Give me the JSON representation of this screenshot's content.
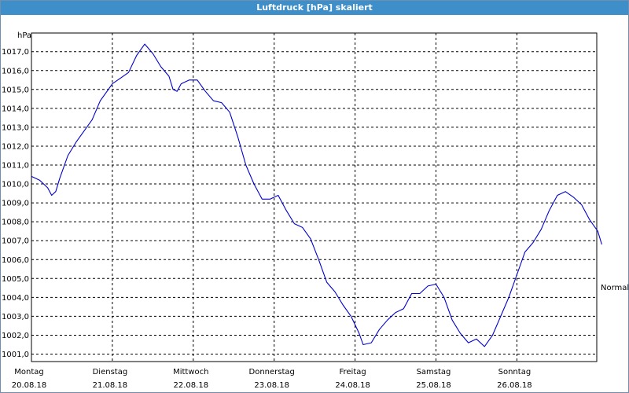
{
  "window": {
    "title": "Luftdruck [hPa] skaliert"
  },
  "chart_data": {
    "type": "line",
    "title": "Luftdruck [hPa] skaliert",
    "ylabel": "hPa",
    "ylim": [
      1000.5,
      1017.9
    ],
    "yticks": [
      "1001,0",
      "1002,0",
      "1003,0",
      "1004,0",
      "1005,0",
      "1006,0",
      "1007,0",
      "1008,0",
      "1009,0",
      "1010,0",
      "1011,0",
      "1012,0",
      "1013,0",
      "1014,0",
      "1015,0",
      "1016,0",
      "1017,0"
    ],
    "xlim": [
      0,
      7
    ],
    "xticks": [
      {
        "day": "Montag",
        "date": "20.08.18"
      },
      {
        "day": "Dienstag",
        "date": "21.08.18"
      },
      {
        "day": "Mittwoch",
        "date": "22.08.18"
      },
      {
        "day": "Donnerstag",
        "date": "23.08.18"
      },
      {
        "day": "Freitag",
        "date": "24.08.18"
      },
      {
        "day": "Samstag",
        "date": "25.08.18"
      },
      {
        "day": "Sonntag",
        "date": "26.08.18"
      }
    ],
    "grid": true,
    "line_color": "#0000cc",
    "annotation": "Normal",
    "series": [
      {
        "points": [
          [
            0.0,
            1010.4
          ],
          [
            0.1,
            1010.2
          ],
          [
            0.2,
            1009.8
          ],
          [
            0.25,
            1009.4
          ],
          [
            0.3,
            1009.6
          ],
          [
            0.35,
            1010.3
          ],
          [
            0.45,
            1011.5
          ],
          [
            0.55,
            1012.2
          ],
          [
            0.65,
            1012.8
          ],
          [
            0.75,
            1013.4
          ],
          [
            0.85,
            1014.4
          ],
          [
            0.95,
            1015.0
          ],
          [
            1.0,
            1015.3
          ],
          [
            1.1,
            1015.6
          ],
          [
            1.2,
            1015.9
          ],
          [
            1.3,
            1016.8
          ],
          [
            1.4,
            1017.4
          ],
          [
            1.5,
            1016.9
          ],
          [
            1.6,
            1016.2
          ],
          [
            1.7,
            1015.7
          ],
          [
            1.75,
            1015.0
          ],
          [
            1.8,
            1014.9
          ],
          [
            1.85,
            1015.3
          ],
          [
            1.95,
            1015.5
          ],
          [
            2.05,
            1015.5
          ],
          [
            2.15,
            1014.9
          ],
          [
            2.25,
            1014.4
          ],
          [
            2.35,
            1014.3
          ],
          [
            2.45,
            1013.8
          ],
          [
            2.55,
            1012.5
          ],
          [
            2.65,
            1011.0
          ],
          [
            2.75,
            1010.0
          ],
          [
            2.85,
            1009.2
          ],
          [
            2.95,
            1009.2
          ],
          [
            3.05,
            1009.4
          ],
          [
            3.15,
            1008.6
          ],
          [
            3.25,
            1007.9
          ],
          [
            3.35,
            1007.7
          ],
          [
            3.45,
            1007.1
          ],
          [
            3.55,
            1006.0
          ],
          [
            3.65,
            1004.8
          ],
          [
            3.75,
            1004.3
          ],
          [
            3.85,
            1003.6
          ],
          [
            3.95,
            1003.0
          ],
          [
            4.05,
            1002.1
          ],
          [
            4.1,
            1001.5
          ],
          [
            4.2,
            1001.6
          ],
          [
            4.3,
            1002.3
          ],
          [
            4.4,
            1002.8
          ],
          [
            4.5,
            1003.2
          ],
          [
            4.6,
            1003.4
          ],
          [
            4.7,
            1004.2
          ],
          [
            4.8,
            1004.2
          ],
          [
            4.9,
            1004.6
          ],
          [
            5.0,
            1004.7
          ],
          [
            5.1,
            1004.0
          ],
          [
            5.2,
            1002.8
          ],
          [
            5.3,
            1002.1
          ],
          [
            5.4,
            1001.6
          ],
          [
            5.5,
            1001.8
          ],
          [
            5.6,
            1001.4
          ],
          [
            5.7,
            1002.0
          ],
          [
            5.8,
            1003.0
          ],
          [
            5.9,
            1004.0
          ],
          [
            6.0,
            1005.2
          ],
          [
            6.1,
            1006.4
          ],
          [
            6.2,
            1006.9
          ],
          [
            6.3,
            1007.6
          ],
          [
            6.4,
            1008.6
          ],
          [
            6.5,
            1009.4
          ],
          [
            6.6,
            1009.6
          ],
          [
            6.7,
            1009.3
          ],
          [
            6.8,
            1008.9
          ],
          [
            6.9,
            1008.1
          ],
          [
            7.0,
            1007.5
          ],
          [
            7.05,
            1006.8
          ]
        ]
      }
    ]
  }
}
